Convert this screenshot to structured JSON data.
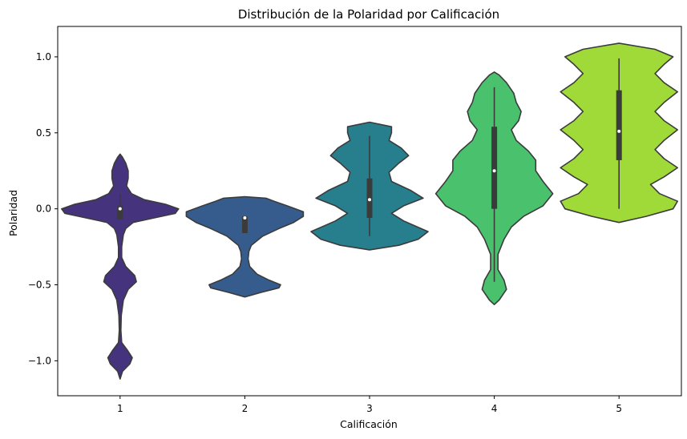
{
  "chart_data": {
    "type": "violin",
    "title": "Distribución de la Polaridad por Calificación",
    "xlabel": "Calificación",
    "ylabel": "Polaridad",
    "ylim": [
      -1.23,
      1.2
    ],
    "yticks": [
      1.0,
      0.5,
      0.0,
      -0.5,
      -1.0
    ],
    "ytick_labels": [
      "1.0",
      "0.5",
      "0.0",
      "−0.5",
      "−1.0"
    ],
    "categories": [
      "1",
      "2",
      "3",
      "4",
      "5"
    ],
    "grid": false,
    "legend": "none",
    "series": [
      {
        "category": "1",
        "color": "#46337e",
        "box": {
          "q1": -0.07,
          "median": 0.0,
          "q3": 0.02,
          "whisker_low": -0.07,
          "whisker_high": 0.1
        },
        "density": [
          [
            -1.12,
            0
          ],
          [
            -1.07,
            0.03
          ],
          [
            -1.02,
            0.12
          ],
          [
            -0.98,
            0.15
          ],
          [
            -0.93,
            0.09
          ],
          [
            -0.88,
            0.02
          ],
          [
            -0.8,
            0.01
          ],
          [
            -0.7,
            0.015
          ],
          [
            -0.6,
            0.04
          ],
          [
            -0.53,
            0.1
          ],
          [
            -0.48,
            0.2
          ],
          [
            -0.44,
            0.18
          ],
          [
            -0.38,
            0.07
          ],
          [
            -0.32,
            0.02
          ],
          [
            -0.25,
            0.02
          ],
          [
            -0.17,
            0.04
          ],
          [
            -0.13,
            0.07
          ],
          [
            -0.09,
            0.16
          ],
          [
            -0.06,
            0.42
          ],
          [
            -0.03,
            0.68
          ],
          [
            0.0,
            0.72
          ],
          [
            0.03,
            0.56
          ],
          [
            0.06,
            0.3
          ],
          [
            0.1,
            0.14
          ],
          [
            0.15,
            0.08
          ],
          [
            0.2,
            0.1
          ],
          [
            0.25,
            0.1
          ],
          [
            0.3,
            0.07
          ],
          [
            0.34,
            0.03
          ],
          [
            0.36,
            0
          ]
        ]
      },
      {
        "category": "2",
        "color": "#365c8d",
        "box": {
          "q1": -0.16,
          "median": -0.06,
          "q3": -0.05,
          "whisker_low": -0.16,
          "whisker_high": -0.05
        },
        "density": [
          [
            -0.58,
            0
          ],
          [
            -0.55,
            0.2
          ],
          [
            -0.52,
            0.42
          ],
          [
            -0.5,
            0.44
          ],
          [
            -0.47,
            0.3
          ],
          [
            -0.43,
            0.15
          ],
          [
            -0.38,
            0.06
          ],
          [
            -0.33,
            0.04
          ],
          [
            -0.28,
            0.05
          ],
          [
            -0.24,
            0.08
          ],
          [
            -0.18,
            0.22
          ],
          [
            -0.13,
            0.42
          ],
          [
            -0.09,
            0.6
          ],
          [
            -0.05,
            0.72
          ],
          [
            -0.02,
            0.72
          ],
          [
            0.02,
            0.52
          ],
          [
            0.05,
            0.36
          ],
          [
            0.07,
            0.26
          ],
          [
            0.08,
            0
          ]
        ]
      },
      {
        "category": "3",
        "color": "#277f8e",
        "box": {
          "q1": -0.06,
          "median": 0.06,
          "q3": 0.2,
          "whisker_low": -0.18,
          "whisker_high": 0.48
        },
        "density": [
          [
            -0.27,
            0
          ],
          [
            -0.24,
            0.12
          ],
          [
            -0.2,
            0.2
          ],
          [
            -0.15,
            0.24
          ],
          [
            -0.08,
            0.14
          ],
          [
            -0.03,
            0.09
          ],
          [
            0.02,
            0.14
          ],
          [
            0.07,
            0.22
          ],
          [
            0.12,
            0.17
          ],
          [
            0.18,
            0.09
          ],
          [
            0.24,
            0.08
          ],
          [
            0.3,
            0.12
          ],
          [
            0.35,
            0.16
          ],
          [
            0.4,
            0.13
          ],
          [
            0.45,
            0.08
          ],
          [
            0.5,
            0.09
          ],
          [
            0.54,
            0.09
          ],
          [
            0.57,
            0
          ]
        ]
      },
      {
        "category": "4",
        "color": "#4ac16d",
        "box": {
          "q1": 0.0,
          "median": 0.25,
          "q3": 0.54,
          "whisker_low": -0.48,
          "whisker_high": 0.8
        },
        "density": [
          [
            -0.63,
            0
          ],
          [
            -0.6,
            0.02
          ],
          [
            -0.53,
            0.05
          ],
          [
            -0.47,
            0.04
          ],
          [
            -0.4,
            0.015
          ],
          [
            -0.3,
            0.015
          ],
          [
            -0.2,
            0.04
          ],
          [
            -0.12,
            0.07
          ],
          [
            -0.05,
            0.12
          ],
          [
            0.02,
            0.2
          ],
          [
            0.1,
            0.24
          ],
          [
            0.18,
            0.2
          ],
          [
            0.25,
            0.17
          ],
          [
            0.32,
            0.17
          ],
          [
            0.38,
            0.14
          ],
          [
            0.45,
            0.09
          ],
          [
            0.52,
            0.07
          ],
          [
            0.58,
            0.1
          ],
          [
            0.64,
            0.11
          ],
          [
            0.7,
            0.09
          ],
          [
            0.76,
            0.08
          ],
          [
            0.83,
            0.05
          ],
          [
            0.88,
            0.02
          ],
          [
            0.9,
            0
          ]
        ]
      },
      {
        "category": "5",
        "color": "#a0da39",
        "box": {
          "q1": 0.32,
          "median": 0.51,
          "q3": 0.78,
          "whisker_low": 0.0,
          "whisker_high": 0.99
        },
        "density": [
          [
            -0.09,
            0
          ],
          [
            -0.05,
            0.06
          ],
          [
            0.0,
            0.12
          ],
          [
            0.05,
            0.13
          ],
          [
            0.1,
            0.09
          ],
          [
            0.16,
            0.07
          ],
          [
            0.21,
            0.1
          ],
          [
            0.27,
            0.13
          ],
          [
            0.33,
            0.1
          ],
          [
            0.39,
            0.08
          ],
          [
            0.45,
            0.1
          ],
          [
            0.52,
            0.13
          ],
          [
            0.58,
            0.1
          ],
          [
            0.64,
            0.08
          ],
          [
            0.7,
            0.1
          ],
          [
            0.77,
            0.13
          ],
          [
            0.83,
            0.1
          ],
          [
            0.89,
            0.08
          ],
          [
            0.95,
            0.1
          ],
          [
            1.0,
            0.12
          ],
          [
            1.05,
            0.08
          ],
          [
            1.09,
            0
          ]
        ]
      }
    ]
  }
}
